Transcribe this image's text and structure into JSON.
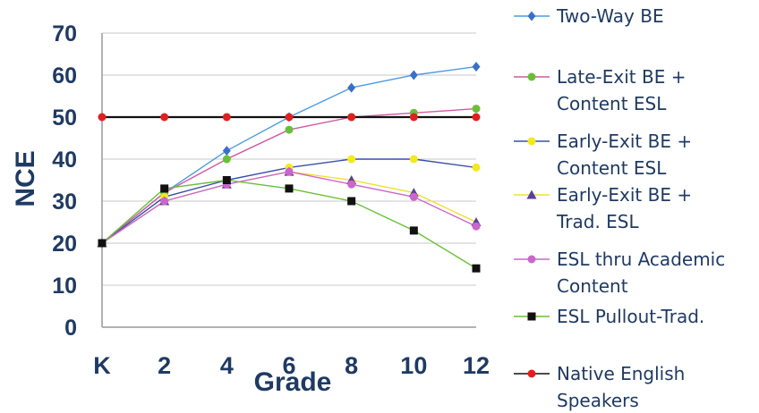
{
  "chart_data": {
    "type": "line",
    "title": "",
    "xlabel": "Grade",
    "ylabel": "NCE",
    "categories": [
      "K",
      "2",
      "4",
      "6",
      "8",
      "10",
      "12"
    ],
    "ylim": [
      0,
      70
    ],
    "yticks": [
      0,
      10,
      20,
      30,
      40,
      50,
      60,
      70
    ],
    "grid": "horizontal",
    "legend_position": "right",
    "series": [
      {
        "name": "Two-Way BE",
        "color": "#4d9be0",
        "marker": "diamond",
        "marker_color": "#3a6fc9",
        "values": [
          20,
          32,
          42,
          50,
          57,
          60,
          62
        ]
      },
      {
        "name": "Late-Exit BE + Content ESL",
        "color": "#d05aa0",
        "marker": "circle",
        "marker_color": "#6abf3a",
        "values": [
          20,
          32,
          40,
          47,
          50,
          51,
          52
        ]
      },
      {
        "name": "Early-Exit BE + Content ESL",
        "color": "#3a4fa8",
        "marker": "circle",
        "marker_color": "#f2ea1c",
        "values": [
          20,
          31,
          35,
          38,
          40,
          40,
          38
        ]
      },
      {
        "name": "Early-Exit BE + Trad. ESL",
        "color": "#f0e030",
        "marker": "triangle",
        "marker_color": "#5b3f99",
        "values": [
          20,
          30,
          34,
          37,
          35,
          32,
          25
        ]
      },
      {
        "name": "ESL thru Academic Content",
        "color": "#cc66cc",
        "marker": "circle",
        "marker_color": "#cc66cc",
        "values": [
          20,
          30,
          34,
          37,
          34,
          31,
          24
        ]
      },
      {
        "name": "ESL Pullout-Trad.",
        "color": "#6abf3a",
        "marker": "square",
        "marker_color": "#111111",
        "values": [
          20,
          33,
          35,
          33,
          30,
          23,
          14
        ]
      },
      {
        "name": "Native English Speakers",
        "color": "#111111",
        "marker": "circle",
        "marker_color": "#e02020",
        "values": [
          50,
          50,
          50,
          50,
          50,
          50,
          50
        ]
      }
    ]
  },
  "legend": {
    "items": [
      {
        "lines": [
          "Two-Way BE"
        ]
      },
      {
        "lines": [
          "Late-Exit BE +",
          "Content ESL"
        ]
      },
      {
        "lines": [
          "Early-Exit BE +",
          "Content ESL"
        ]
      },
      {
        "lines": [
          "Early-Exit BE +",
          "Trad. ESL"
        ]
      },
      {
        "lines": [
          "ESL thru Academic",
          "Content"
        ]
      },
      {
        "lines": [
          "ESL Pullout-Trad."
        ]
      },
      {
        "lines": [
          "Native English",
          "Speakers"
        ]
      }
    ]
  }
}
